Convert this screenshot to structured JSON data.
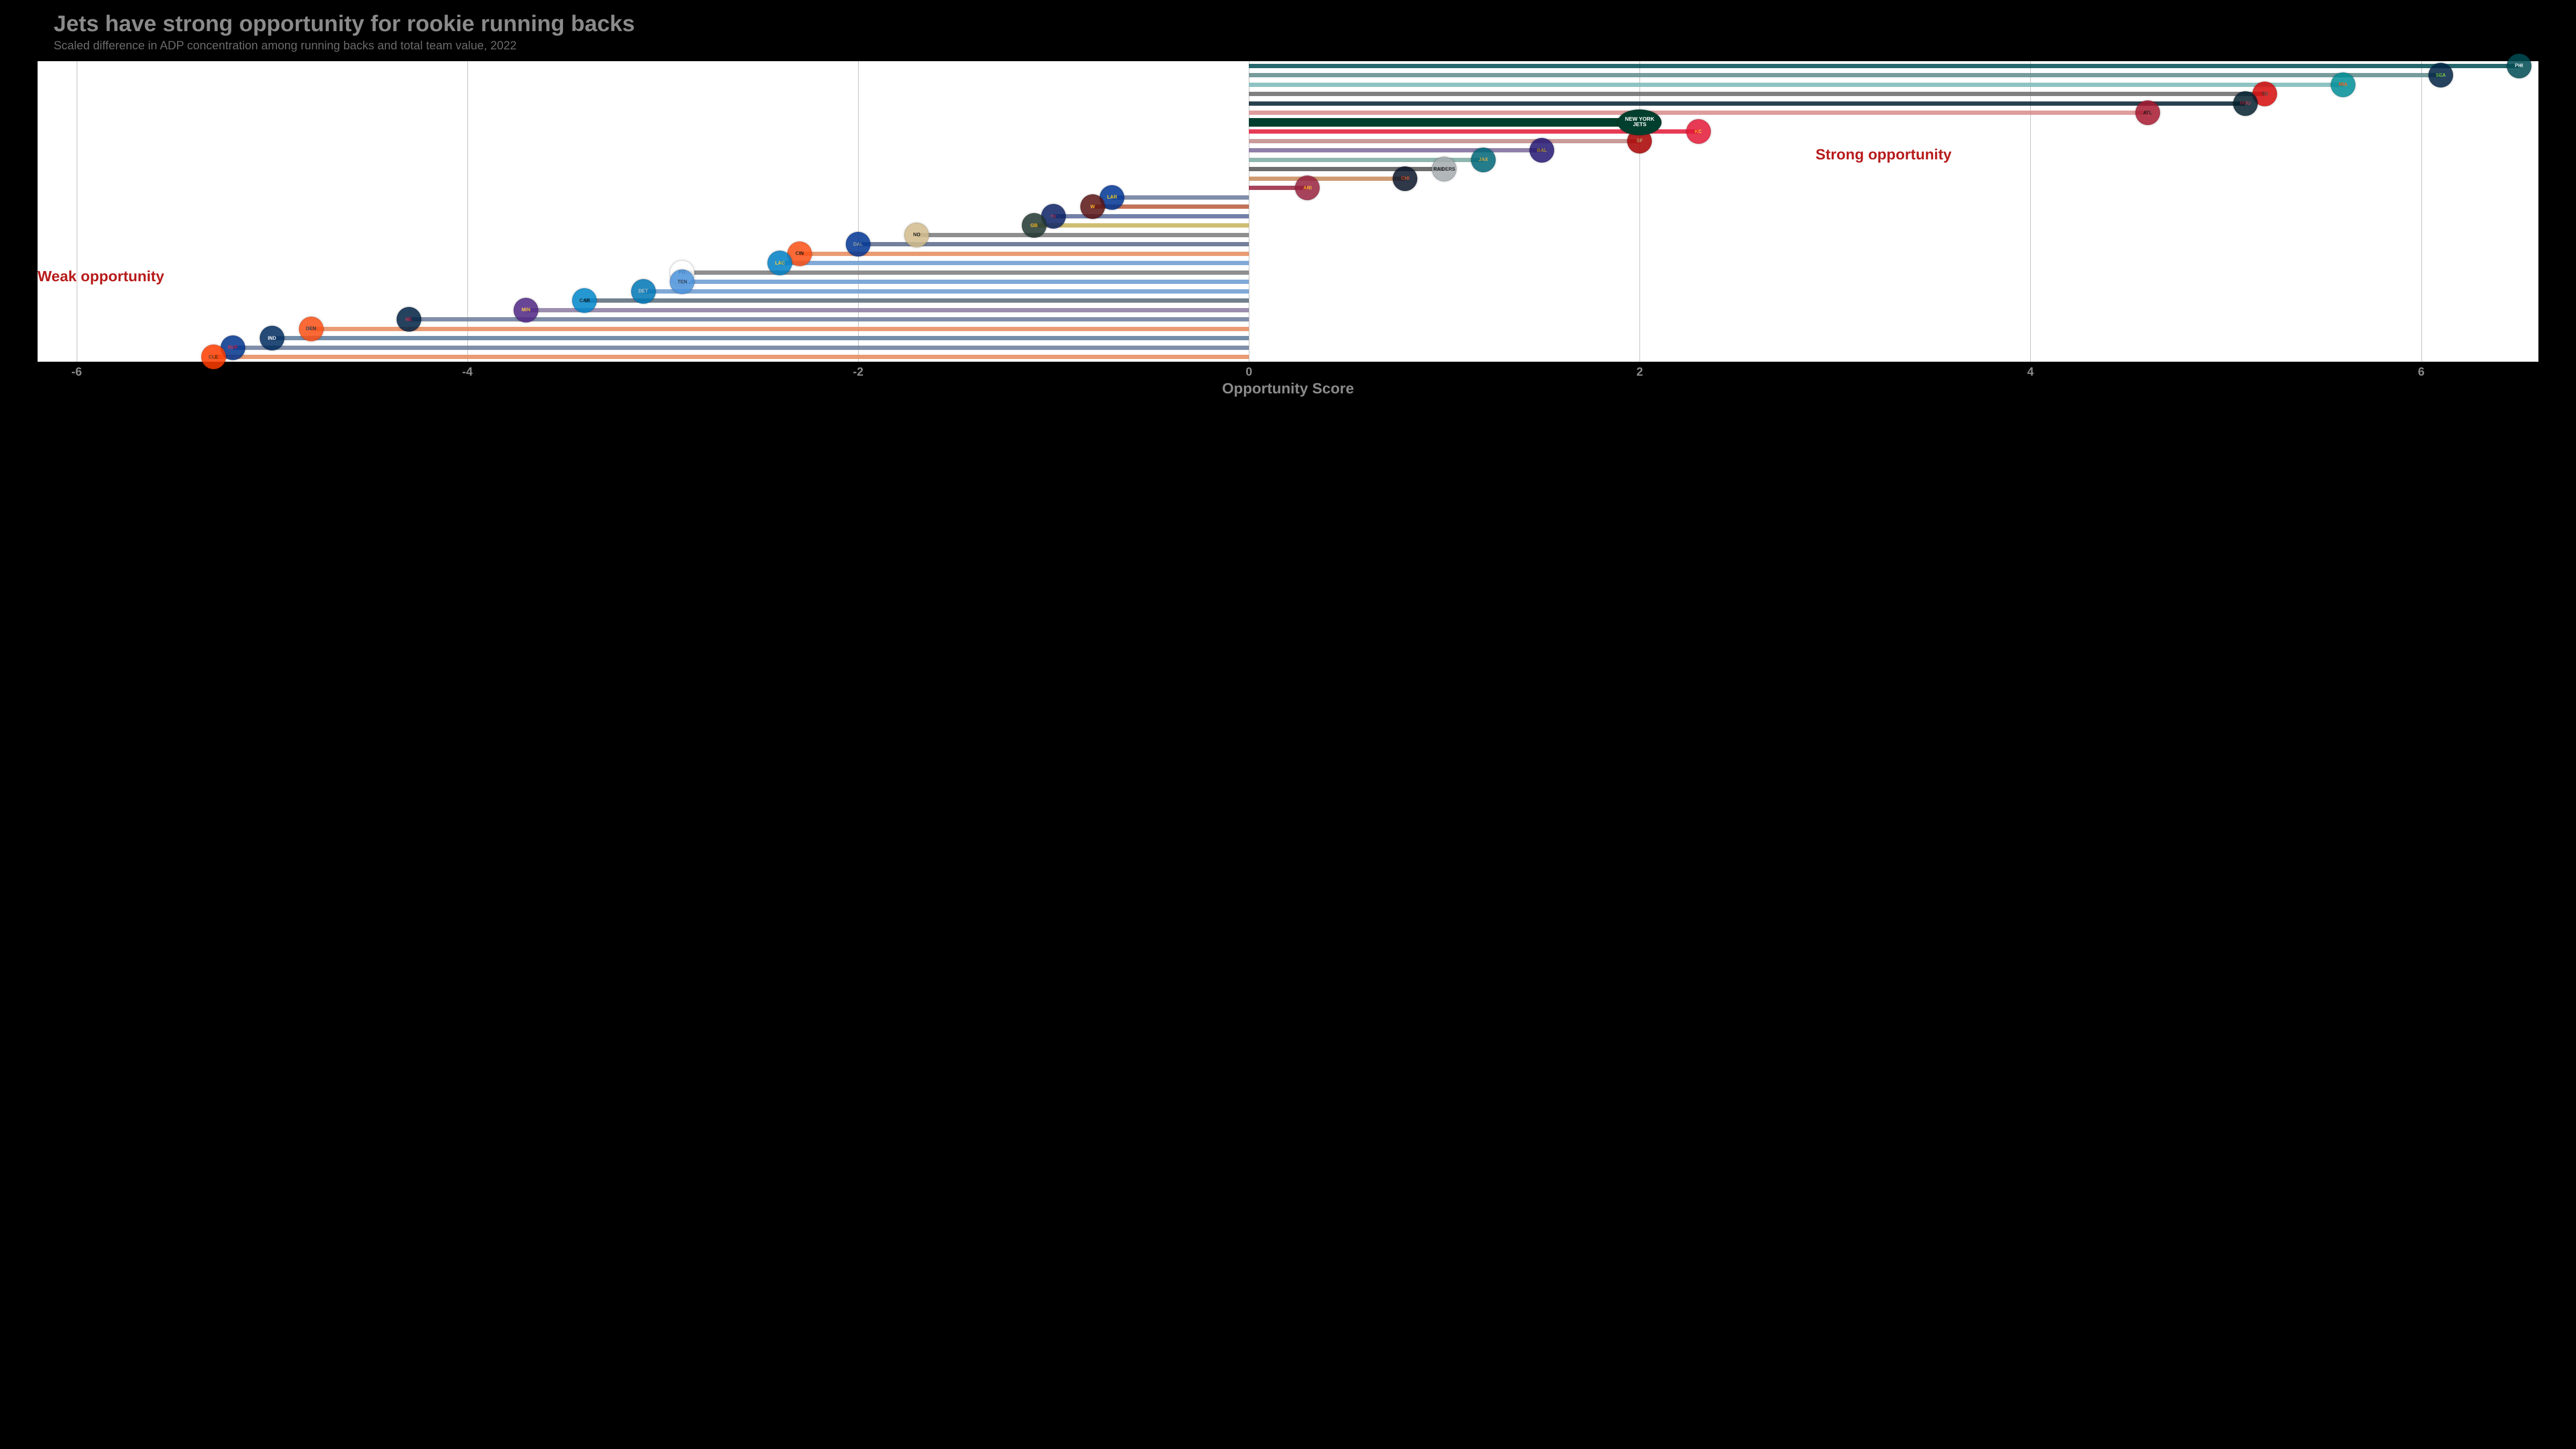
{
  "title": "Jets have strong opportunity for rookie running backs",
  "subtitle": "Scaled difference in ADP concentration among running backs and total team value, 2022",
  "chart": {
    "type": "bar-horizontal-diverging",
    "xlabel": "Opportunity Score",
    "xlim": [
      -6.2,
      6.6
    ],
    "xticks": [
      -6,
      -4,
      -2,
      0,
      2,
      4,
      6
    ],
    "background_color": "#ffffff",
    "grid_color": "#b8b8b8",
    "title_color": "#8a8a8a",
    "annotation_color": "#b81c1c",
    "bar_opacity": 0.85,
    "annotations": [
      {
        "text": "Strong opportunity",
        "x": 2.9,
        "row": 9
      },
      {
        "text": "Weak opportunity",
        "x": -6.2,
        "row": 22
      }
    ],
    "highlight_team": "NYJ",
    "highlight_color": "#003f2d",
    "teams": [
      {
        "code": "PHI",
        "value": 6.5,
        "color": "#004c54",
        "logo_bg": "#004c54",
        "logo_fg": "#ffffff",
        "label": "PHI"
      },
      {
        "code": "SEA",
        "value": 6.1,
        "color": "#5e8a8a",
        "logo_bg": "#002244",
        "logo_fg": "#69be28",
        "label": "SEA"
      },
      {
        "code": "MIA",
        "value": 5.6,
        "color": "#7ab9b9",
        "logo_bg": "#008e97",
        "logo_fg": "#fc4c02",
        "label": "MIA"
      },
      {
        "code": "TB",
        "value": 5.2,
        "color": "#6a6a6a",
        "logo_bg": "#d50a0a",
        "logo_fg": "#34302b",
        "label": "TB"
      },
      {
        "code": "HOU",
        "value": 5.1,
        "color": "#03202f",
        "logo_bg": "#03202f",
        "logo_fg": "#a71930",
        "label": "HOU"
      },
      {
        "code": "ATL",
        "value": 4.6,
        "color": "#d98b8b",
        "logo_bg": "#a71930",
        "logo_fg": "#000000",
        "label": "ATL"
      },
      {
        "code": "NYJ",
        "value": 2.0,
        "color": "#003f2d",
        "logo_bg": "#003f2d",
        "logo_fg": "#ffffff",
        "label": "NEW YORK JETS"
      },
      {
        "code": "KC",
        "value": 2.3,
        "color": "#e31837",
        "logo_bg": "#e31837",
        "logo_fg": "#ffb81c",
        "label": "KC"
      },
      {
        "code": "SF",
        "value": 2.0,
        "color": "#c08a8a",
        "logo_bg": "#aa0000",
        "logo_fg": "#b3995d",
        "label": "SF"
      },
      {
        "code": "BAL",
        "value": 1.5,
        "color": "#7a6a9a",
        "logo_bg": "#241773",
        "logo_fg": "#9e7c0c",
        "label": "BAL"
      },
      {
        "code": "JAX",
        "value": 1.2,
        "color": "#7aa9a0",
        "logo_bg": "#006778",
        "logo_fg": "#d7a22a",
        "label": "JAX"
      },
      {
        "code": "LV",
        "value": 1.0,
        "color": "#555555",
        "logo_bg": "#a5acaf",
        "logo_fg": "#000000",
        "label": "RAIDERS"
      },
      {
        "code": "CHI",
        "value": 0.8,
        "color": "#c88a5a",
        "logo_bg": "#0b162a",
        "logo_fg": "#c83803",
        "label": "CHI"
      },
      {
        "code": "ARI",
        "value": 0.3,
        "color": "#97233f",
        "logo_bg": "#97233f",
        "logo_fg": "#ffb612",
        "label": "ARI"
      },
      {
        "code": "LAR",
        "value": -0.7,
        "color": "#6a7a9a",
        "logo_bg": "#003594",
        "logo_fg": "#ffd100",
        "label": "LAR"
      },
      {
        "code": "WAS",
        "value": -0.8,
        "color": "#b85a3a",
        "logo_bg": "#5a1414",
        "logo_fg": "#ffb612",
        "label": "W"
      },
      {
        "code": "NYG",
        "value": -1.0,
        "color": "#5a6a9a",
        "logo_bg": "#0b2265",
        "logo_fg": "#a71930",
        "label": "ny"
      },
      {
        "code": "GB",
        "value": -1.1,
        "color": "#c5b358",
        "logo_bg": "#203731",
        "logo_fg": "#ffb612",
        "label": "GB"
      },
      {
        "code": "NO",
        "value": -1.7,
        "color": "#7a7a7a",
        "logo_bg": "#d3bc8d",
        "logo_fg": "#000000",
        "label": "NO"
      },
      {
        "code": "DAL",
        "value": -2.0,
        "color": "#5a6a8a",
        "logo_bg": "#003594",
        "logo_fg": "#869397",
        "label": "DAL"
      },
      {
        "code": "CIN",
        "value": -2.3,
        "color": "#e58a5a",
        "logo_bg": "#fb4f14",
        "logo_fg": "#000000",
        "label": "CIN"
      },
      {
        "code": "LAC",
        "value": -2.4,
        "color": "#6a9ad0",
        "logo_bg": "#0080c6",
        "logo_fg": "#ffc20e",
        "label": "LAC"
      },
      {
        "code": "PIT",
        "value": -2.9,
        "color": "#7a7a7a",
        "logo_bg": "#ffffff",
        "logo_fg": "#000000",
        "label": "PIT"
      },
      {
        "code": "TEN",
        "value": -2.9,
        "color": "#6a9ad0",
        "logo_bg": "#4b92db",
        "logo_fg": "#0c2340",
        "label": "TEN"
      },
      {
        "code": "DET",
        "value": -3.1,
        "color": "#6a9ad0",
        "logo_bg": "#0076b6",
        "logo_fg": "#b0b7bc",
        "label": "DET"
      },
      {
        "code": "CAR",
        "value": -3.4,
        "color": "#5a6a7a",
        "logo_bg": "#0085ca",
        "logo_fg": "#000000",
        "label": "CAR"
      },
      {
        "code": "MIN",
        "value": -3.7,
        "color": "#8a7aa0",
        "logo_bg": "#4f2683",
        "logo_fg": "#ffc62f",
        "label": "MIN"
      },
      {
        "code": "NE",
        "value": -4.3,
        "color": "#6a7a9a",
        "logo_bg": "#002244",
        "logo_fg": "#c60c30",
        "label": "NE"
      },
      {
        "code": "DEN",
        "value": -4.8,
        "color": "#e58a5a",
        "logo_bg": "#fb4f14",
        "logo_fg": "#002244",
        "label": "DEN"
      },
      {
        "code": "IND",
        "value": -5.0,
        "color": "#5a7a9a",
        "logo_bg": "#002c5f",
        "logo_fg": "#ffffff",
        "label": "IND"
      },
      {
        "code": "BUF",
        "value": -5.2,
        "color": "#6a7a9a",
        "logo_bg": "#00338d",
        "logo_fg": "#c60c30",
        "label": "BUF"
      },
      {
        "code": "CLE",
        "value": -5.3,
        "color": "#e58a5a",
        "logo_bg": "#ff3c00",
        "logo_fg": "#311d00",
        "label": "CLE"
      }
    ]
  }
}
